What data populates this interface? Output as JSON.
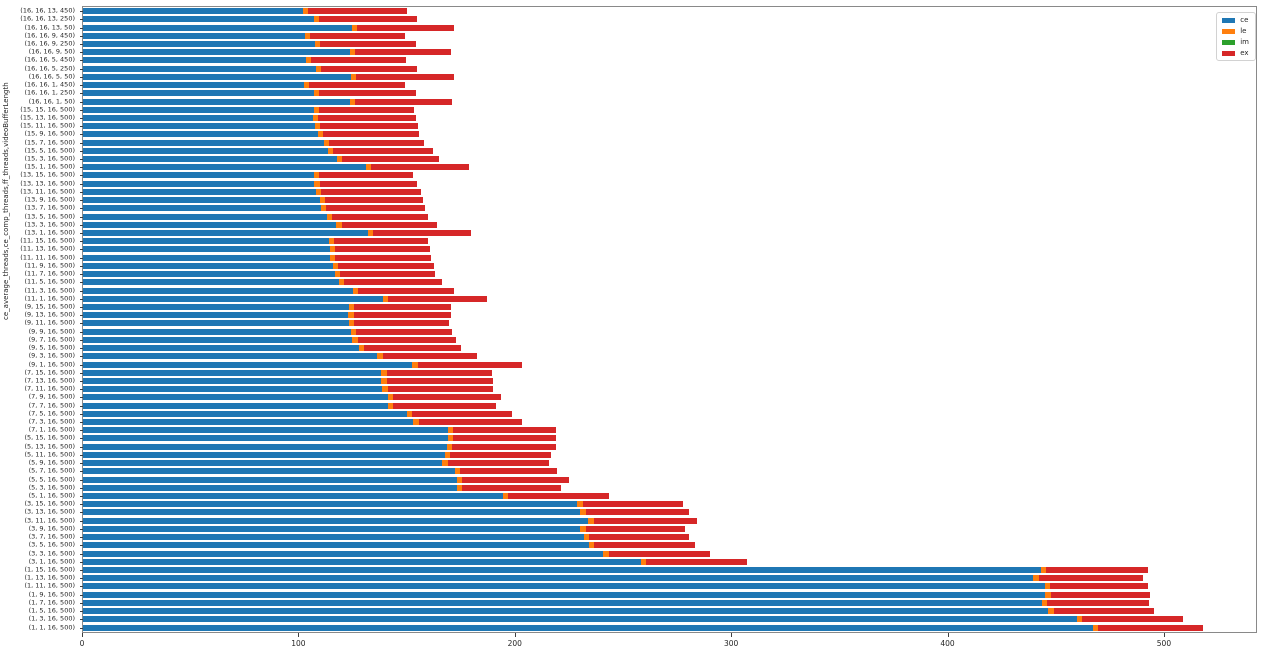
{
  "figure": {
    "background": "#ffffff",
    "spine_color": "#898989",
    "tick_color": "#404040",
    "text_color": "#262626"
  },
  "chart_data": {
    "type": "bar",
    "orientation": "horizontal",
    "stacked": true,
    "title": "",
    "xlabel": "",
    "ylabel": "ce_average_threads,ce_comp_threads,ff_threads,videoBufferLength",
    "xlim": [
      0,
      543
    ],
    "x_ticks": [
      0,
      100,
      200,
      300,
      400,
      500
    ],
    "x_tick_labels": [
      "0",
      "100",
      "200",
      "300",
      "400",
      "500"
    ],
    "grid": false,
    "legend": {
      "position": "upper right",
      "entries": [
        {
          "label": "ce",
          "color": "#1f77b4"
        },
        {
          "label": "le",
          "color": "#ff7f0e"
        },
        {
          "label": "im",
          "color": "#2ca02c"
        },
        {
          "label": "ex",
          "color": "#d62728"
        }
      ]
    },
    "categories": [
      "(16, 16, 13, 450)",
      "(16, 16, 13, 250)",
      "(16, 16, 13, 50)",
      "(16, 16, 9, 450)",
      "(16, 16, 9, 250)",
      "(16, 16, 9, 50)",
      "(16, 16, 5, 450)",
      "(16, 16, 5, 250)",
      "(16, 16, 5, 50)",
      "(16, 16, 1, 450)",
      "(16, 16, 1, 250)",
      "(16, 16, 1, 50)",
      "(15, 15, 16, 500)",
      "(15, 13, 16, 500)",
      "(15, 11, 16, 500)",
      "(15, 9, 16, 500)",
      "(15, 7, 16, 500)",
      "(15, 5, 16, 500)",
      "(15, 3, 16, 500)",
      "(15, 1, 16, 500)",
      "(13, 15, 16, 500)",
      "(13, 13, 16, 500)",
      "(13, 11, 16, 500)",
      "(13, 9, 16, 500)",
      "(13, 7, 16, 500)",
      "(13, 5, 16, 500)",
      "(13, 3, 16, 500)",
      "(13, 1, 16, 500)",
      "(11, 15, 16, 500)",
      "(11, 13, 16, 500)",
      "(11, 11, 16, 500)",
      "(11, 9, 16, 500)",
      "(11, 7, 16, 500)",
      "(11, 5, 16, 500)",
      "(11, 3, 16, 500)",
      "(11, 1, 16, 500)",
      "(9, 15, 16, 500)",
      "(9, 13, 16, 500)",
      "(9, 11, 16, 500)",
      "(9, 9, 16, 500)",
      "(9, 7, 16, 500)",
      "(9, 5, 16, 500)",
      "(9, 3, 16, 500)",
      "(9, 1, 16, 500)",
      "(7, 15, 16, 500)",
      "(7, 13, 16, 500)",
      "(7, 11, 16, 500)",
      "(7, 9, 16, 500)",
      "(7, 7, 16, 500)",
      "(7, 5, 16, 500)",
      "(7, 3, 16, 500)",
      "(7, 1, 16, 500)",
      "(5, 15, 16, 500)",
      "(5, 13, 16, 500)",
      "(5, 11, 16, 500)",
      "(5, 9, 16, 500)",
      "(5, 7, 16, 500)",
      "(5, 5, 16, 500)",
      "(5, 3, 16, 500)",
      "(5, 1, 16, 500)",
      "(3, 15, 16, 500)",
      "(3, 13, 16, 500)",
      "(3, 11, 16, 500)",
      "(3, 9, 16, 500)",
      "(3, 7, 16, 500)",
      "(3, 5, 16, 500)",
      "(3, 3, 16, 500)",
      "(3, 1, 16, 500)",
      "(1, 15, 16, 500)",
      "(1, 13, 16, 500)",
      "(1, 11, 16, 500)",
      "(1, 9, 16, 500)",
      "(1, 7, 16, 500)",
      "(1, 5, 16, 500)",
      "(1, 3, 16, 500)",
      "(1, 1, 16, 500)"
    ],
    "series": [
      {
        "name": "ce",
        "color": "#1f77b4",
        "values": [
          101.8,
          106.9,
          124.4,
          102.7,
          107.3,
          123.5,
          103.1,
          107.8,
          124.0,
          102.2,
          106.9,
          123.5,
          106.9,
          106.4,
          107.3,
          108.7,
          111.5,
          113.3,
          117.5,
          130.9,
          106.9,
          107.0,
          107.8,
          109.7,
          110.0,
          112.9,
          117.3,
          131.7,
          113.8,
          114.2,
          114.2,
          115.5,
          116.6,
          118.4,
          124.9,
          138.8,
          123.0,
          122.9,
          123.0,
          124.0,
          124.7,
          127.7,
          136.3,
          152.5,
          138.1,
          138.1,
          138.6,
          141.2,
          141.2,
          149.9,
          152.9,
          169.0,
          169.0,
          168.3,
          167.4,
          166.4,
          172.0,
          173.0,
          173.0,
          194.4,
          228.8,
          230.3,
          233.9,
          230.3,
          231.9,
          234.2,
          240.8,
          258.1,
          443.4,
          440.0,
          445.1,
          445.4,
          443.9,
          446.9,
          460.1,
          467.5
        ]
      },
      {
        "name": "le",
        "color": "#ff7f0e",
        "values": [
          2.5,
          2.5,
          2.5,
          2.5,
          2.5,
          2.5,
          2.5,
          2.5,
          2.5,
          2.5,
          2.5,
          2.5,
          2.5,
          2.5,
          2.5,
          2.5,
          2.5,
          2.5,
          2.5,
          2.5,
          2.5,
          2.5,
          2.5,
          2.5,
          2.5,
          2.5,
          2.5,
          2.5,
          2.5,
          2.5,
          2.5,
          2.5,
          2.5,
          2.5,
          2.5,
          2.5,
          2.5,
          2.5,
          2.5,
          2.5,
          2.5,
          2.5,
          2.5,
          2.5,
          2.5,
          2.5,
          2.5,
          2.5,
          2.5,
          2.5,
          2.5,
          2.5,
          2.5,
          2.5,
          2.5,
          2.5,
          2.5,
          2.5,
          2.5,
          2.5,
          2.5,
          2.5,
          2.5,
          2.5,
          2.5,
          2.5,
          2.5,
          2.5,
          2.5,
          2.5,
          2.5,
          2.5,
          2.5,
          2.5,
          2.5,
          2.5
        ]
      },
      {
        "name": "im",
        "color": "#2ca02c",
        "values": [
          0,
          0,
          0,
          0,
          0,
          0,
          0,
          0,
          0,
          0,
          0,
          0,
          0,
          0,
          0,
          0,
          0,
          0,
          0,
          0,
          0,
          0,
          0,
          0,
          0,
          0,
          0,
          0,
          0,
          0,
          0,
          0,
          0,
          0,
          0,
          0,
          0,
          0,
          0,
          0,
          0,
          0,
          0,
          0,
          0,
          0,
          0,
          0,
          0,
          0,
          0,
          0,
          0,
          0,
          0,
          0,
          0,
          0,
          0,
          0,
          0,
          0,
          0,
          0,
          0,
          0,
          0,
          0,
          0,
          0,
          0,
          0,
          0,
          0,
          0,
          0
        ]
      },
      {
        "name": "ex",
        "color": "#d62728",
        "values": [
          45.6,
          45.1,
          44.7,
          43.7,
          44.2,
          44.2,
          43.8,
          44.2,
          45.1,
          44.2,
          44.6,
          45.0,
          43.7,
          45.1,
          45.2,
          44.3,
          43.7,
          46.1,
          44.7,
          45.3,
          43.6,
          45.3,
          46.0,
          45.2,
          46.0,
          44.3,
          44.3,
          45.2,
          43.2,
          43.8,
          44.3,
          44.4,
          43.7,
          45.1,
          44.2,
          45.6,
          44.7,
          45.1,
          43.8,
          44.5,
          45.3,
          44.6,
          43.8,
          48.4,
          48.6,
          49.2,
          48.9,
          49.6,
          47.3,
          46.0,
          48.0,
          47.3,
          47.3,
          48.0,
          46.9,
          46.8,
          45.1,
          49.4,
          45.6,
          46.5,
          46.4,
          47.6,
          47.9,
          46.1,
          46.0,
          46.4,
          46.8,
          46.8,
          47.0,
          48.1,
          45.3,
          46.1,
          47.3,
          46.6,
          46.8,
          48.7
        ]
      }
    ]
  }
}
